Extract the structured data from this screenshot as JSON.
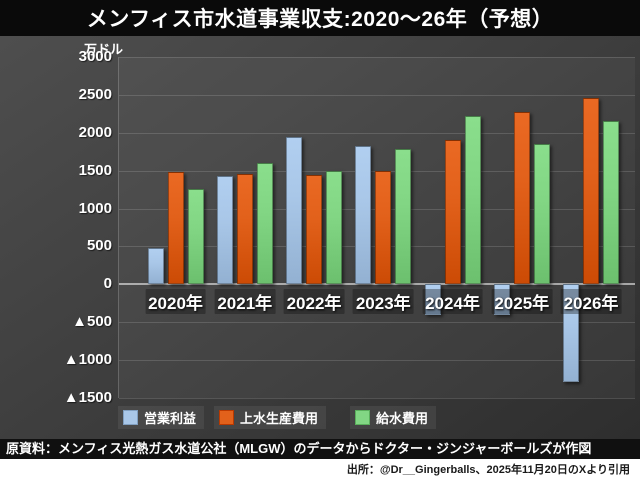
{
  "title": "メンフィス市水道事業収支:2020〜26年（予想）",
  "y_axis": {
    "unit_label": "万ドル",
    "ticks": [
      {
        "label": "3000",
        "value": 3000
      },
      {
        "label": "2500",
        "value": 2500
      },
      {
        "label": "2000",
        "value": 2000
      },
      {
        "label": "1500",
        "value": 1500
      },
      {
        "label": "1000",
        "value": 1000
      },
      {
        "label": "500",
        "value": 500
      },
      {
        "label": "0",
        "value": 0
      },
      {
        "label": "▲500",
        "value": -500
      },
      {
        "label": "▲1000",
        "value": -1000
      },
      {
        "label": "▲1500",
        "value": -1500
      }
    ]
  },
  "chart_data": {
    "type": "bar",
    "title": "メンフィス市水道事業収支:2020〜26年（予想）",
    "xlabel": "",
    "ylabel": "万ドル",
    "ylim": [
      -1500,
      3000
    ],
    "y_step": 500,
    "grid": true,
    "legend_position": "bottom",
    "negative_notation": "▲",
    "categories": [
      "2020年",
      "2021年",
      "2022年",
      "2023年",
      "2024年",
      "2025年",
      "2026年"
    ],
    "series": [
      {
        "name": "営業利益",
        "color": "#a9c7e8",
        "values": [
          480,
          1430,
          1950,
          1820,
          -400,
          -410,
          -1290
        ]
      },
      {
        "name": "上水生産費用",
        "color": "#e2611b",
        "values": [
          1480,
          1460,
          1440,
          1500,
          1910,
          2270,
          2460
        ]
      },
      {
        "name": "給水費用",
        "color": "#82d684",
        "values": [
          1260,
          1600,
          1490,
          1790,
          2220,
          1850,
          2150
        ]
      }
    ]
  },
  "footer": {
    "source_strip": "原資料：メンフィス光熱ガス水道公社（MLGW）のデータからドクター・ジンジャーボールズが作図",
    "citation": "出所：@Dr__Gingerballs、2025年11月20日のXより引用"
  },
  "colors": {
    "title_bar_bg": "#0a0a0a",
    "chart_bg": "#3e3e3e",
    "grid_line": "#5a5a5a",
    "zero_line": "#a6a6a6",
    "tick_text": "#ffffff",
    "source_strip_bg": "#101010",
    "citation_bg": "#ffffff",
    "series_blue": "#a9c7e8",
    "series_orange": "#e2611b",
    "series_green": "#82d684"
  }
}
